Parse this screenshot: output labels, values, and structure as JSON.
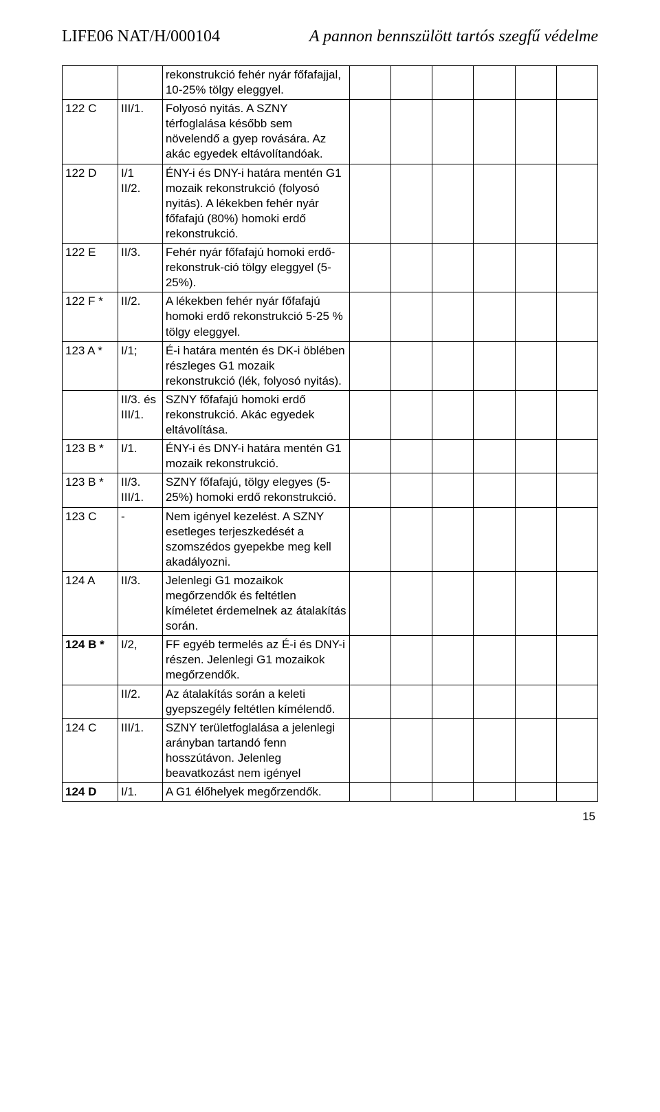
{
  "header": {
    "left": "LIFE06 NAT/H/000104",
    "right": "A pannon bennszülött tartós szegfű védelme"
  },
  "page_number": "15",
  "columns": {
    "col0_width": 70,
    "col1_width": 56,
    "col2_width": 235,
    "extra_cols": 6,
    "extra_col_width": 52
  },
  "rows": [
    {
      "c0": "",
      "c1": "",
      "c2": "rekonstrukció fehér nyár főfafajjal, 10-25% tölgy eleggyel."
    },
    {
      "c0": "122 C",
      "c1": "III/1.",
      "c2": "Folyosó nyitás. A SZNY térfoglalása később sem növelendő a gyep rovására. Az akác egyedek eltávolítandóak."
    },
    {
      "c0": "122 D",
      "c1": "I/1\nII/2.",
      "c2": "ÉNY-i és DNY-i határa mentén G1 mozaik rekonstrukció (folyosó nyitás). A lékekben fehér nyár főfafajú (80%) homoki erdő rekonstrukció."
    },
    {
      "c0": "122 E",
      "c1": "II/3.",
      "c2": "Fehér nyár főfafajú homoki erdő-rekonstruk-ció tölgy eleggyel (5-25%)."
    },
    {
      "c0": "122 F *",
      "c1": "II/2.",
      "c2": "A lékekben fehér nyár főfafajú homoki erdő rekonstrukció 5-25 % tölgy eleggyel."
    },
    {
      "c0": "123 A *",
      "c1": "I/1;",
      "c2": "É-i határa mentén és DK-i öblében részleges G1 mozaik rekonstrukció (lék, folyosó nyitás)."
    },
    {
      "c0": "",
      "c1": "II/3. és III/1.",
      "c2": "SZNY főfafajú homoki erdő rekonstrukció. Akác egyedek eltávolítása."
    },
    {
      "c0": "123 B *",
      "c1": "I/1.",
      "c2": "ÉNY-i és DNY-i határa mentén G1 mozaik rekonstrukció."
    },
    {
      "c0": "123 B *",
      "c1": "II/3. III/1.",
      "c2": "SZNY főfafajú, tölgy elegyes (5-25%) homoki erdő rekonstrukció."
    },
    {
      "c0": "123 C",
      "c1": "-",
      "c2": "Nem igényel kezelést. A SZNY esetleges terjeszkedését a szomszédos gyepekbe meg kell akadályozni."
    },
    {
      "c0": "124 A",
      "c1": "II/3.",
      "c2": "Jelenlegi G1 mozaikok megőrzendők és feltétlen kíméletet érdemelnek az átalakítás során."
    },
    {
      "c0": "124 B *",
      "c0_bold": true,
      "c1": "I/2,",
      "c2": "FF egyéb termelés az É-i és DNY-i részen. Jelenlegi G1 mozaikok megőrzendők."
    },
    {
      "c0": "",
      "c1": "II/2.",
      "c2": "Az átalakítás során a keleti gyepszegély feltétlen kímélendő."
    },
    {
      "c0": "124 C",
      "c1": "III/1.",
      "c2": "SZNY területfoglalása a jelenlegi arányban tartandó fenn hosszútávon. Jelenleg beavatkozást nem igényel"
    },
    {
      "c0": "124 D",
      "c0_bold": true,
      "c1": "I/1.",
      "c2": "A G1 élőhelyek megőrzendők."
    }
  ]
}
